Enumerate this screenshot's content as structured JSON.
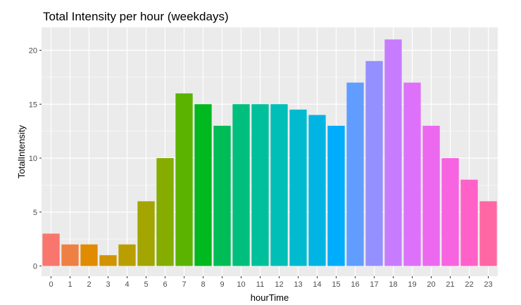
{
  "chart_data": {
    "type": "bar",
    "title": "Total Intensity per hour (weekdays)",
    "xlabel": "hourTime",
    "ylabel": "TotalIntensity",
    "categories": [
      "0",
      "1",
      "2",
      "3",
      "4",
      "5",
      "6",
      "7",
      "8",
      "9",
      "10",
      "11",
      "12",
      "13",
      "14",
      "15",
      "16",
      "17",
      "18",
      "19",
      "20",
      "21",
      "22",
      "23"
    ],
    "values": [
      3,
      2,
      2,
      1,
      2,
      6,
      10,
      16,
      15,
      13,
      15,
      15,
      15,
      14.5,
      14,
      13,
      17,
      19,
      21,
      17,
      13,
      10,
      8,
      6
    ],
    "ylim": [
      0,
      22
    ],
    "yticks": [
      0,
      5,
      10,
      15,
      20
    ],
    "grid": true,
    "legend": "none",
    "panel_background": "#ebebeb",
    "grid_color": "#ffffff",
    "colors": [
      "#F8766D",
      "#EE8043",
      "#E08B00",
      "#CF9400",
      "#BA9E00",
      "#A3A500",
      "#84AD00",
      "#5BB300",
      "#00B81F",
      "#00BC56",
      "#00BF7D",
      "#00C09B",
      "#00BFB7",
      "#00BBD0",
      "#00B5E4",
      "#00ACFC",
      "#619CFF",
      "#9590FF",
      "#C77CFF",
      "#DD71FA",
      "#EC69EF",
      "#F763E0",
      "#FF61C9",
      "#FF67A4"
    ]
  }
}
